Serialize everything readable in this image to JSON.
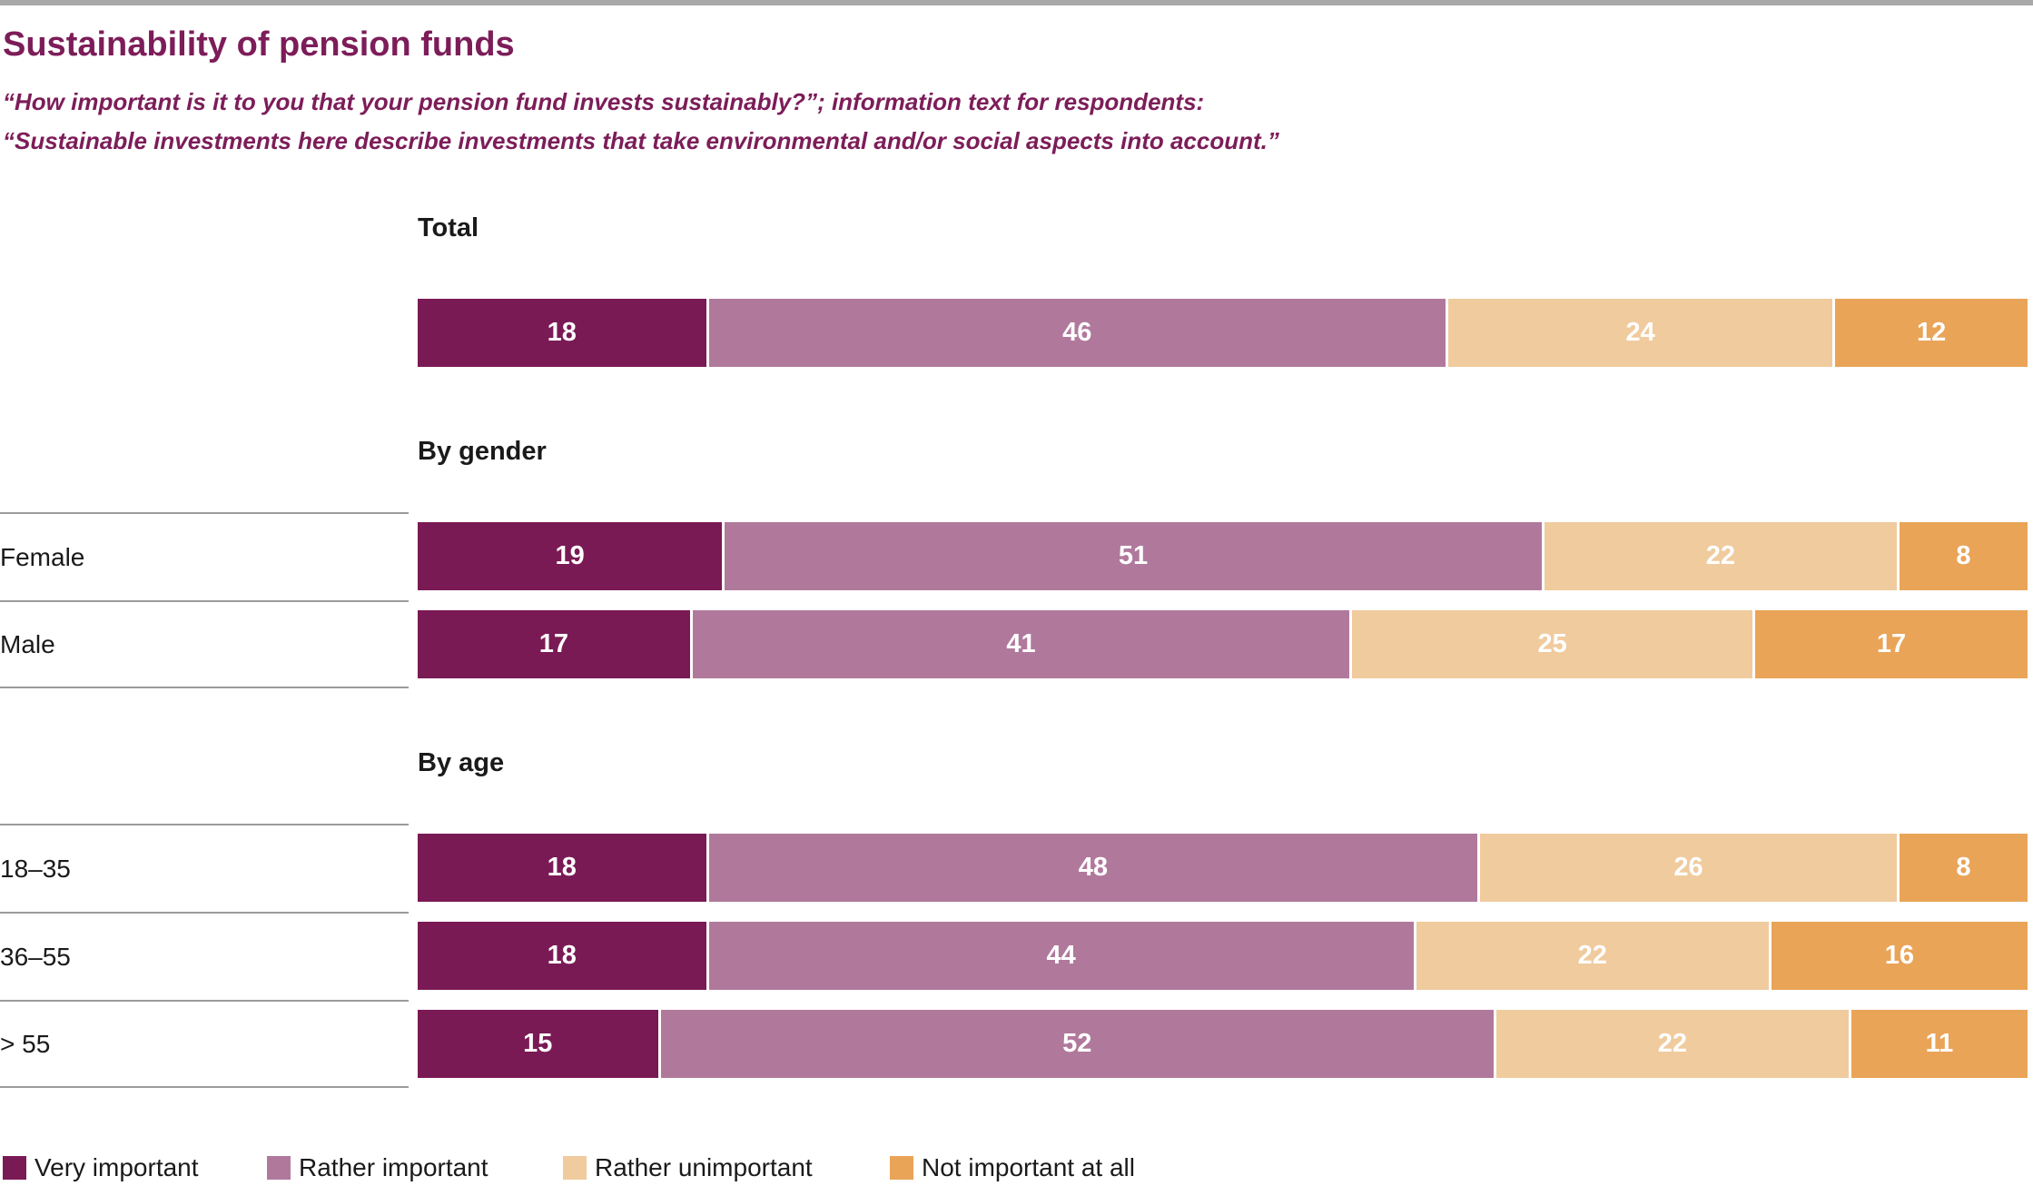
{
  "header": {
    "title": "Sustainability of pension funds",
    "subtitle_line1": "“How important is it to you that your pension fund invests sustainably?”; information text for respondents:",
    "subtitle_line2": "“Sustainable investments here describe investments that take environmental and/or social aspects into account.”"
  },
  "colors": {
    "very_important": "#7a1a55",
    "rather_important": "#b0799c",
    "rather_unimportant": "#f0cb9e",
    "not_important_at_all": "#e9a458",
    "heading_text": "#7c1d59",
    "separator_line": "#9b9b9b",
    "top_rule": "#a9a9a9",
    "value_text": "#ffffff"
  },
  "legend": [
    {
      "label": "Very important",
      "color": "#7a1a55"
    },
    {
      "label": "Rather important",
      "color": "#b0799c"
    },
    {
      "label": "Rather unimportant",
      "color": "#f0cb9e"
    },
    {
      "label": "Not important at all",
      "color": "#e9a458"
    }
  ],
  "chart_data": {
    "type": "bar",
    "orientation": "horizontal",
    "stacked": true,
    "unit": "percent",
    "xlim": [
      0,
      100
    ],
    "grid": false,
    "legend_position": "bottom",
    "series_names": [
      "Very important",
      "Rather important",
      "Rather unimportant",
      "Not important at all"
    ],
    "sections": [
      {
        "header": "Total",
        "rows": [
          {
            "label": "",
            "values": [
              18,
              46,
              24,
              12
            ]
          }
        ]
      },
      {
        "header": "By gender",
        "rows": [
          {
            "label": "Female",
            "values": [
              19,
              51,
              22,
              8
            ]
          },
          {
            "label": "Male",
            "values": [
              17,
              41,
              25,
              17
            ]
          }
        ]
      },
      {
        "header": "By age",
        "rows": [
          {
            "label": "18–35",
            "values": [
              18,
              48,
              26,
              8
            ]
          },
          {
            "label": "36–55",
            "values": [
              18,
              44,
              22,
              16
            ]
          },
          {
            "label": "> 55",
            "values": [
              15,
              52,
              22,
              11
            ]
          }
        ]
      }
    ]
  }
}
